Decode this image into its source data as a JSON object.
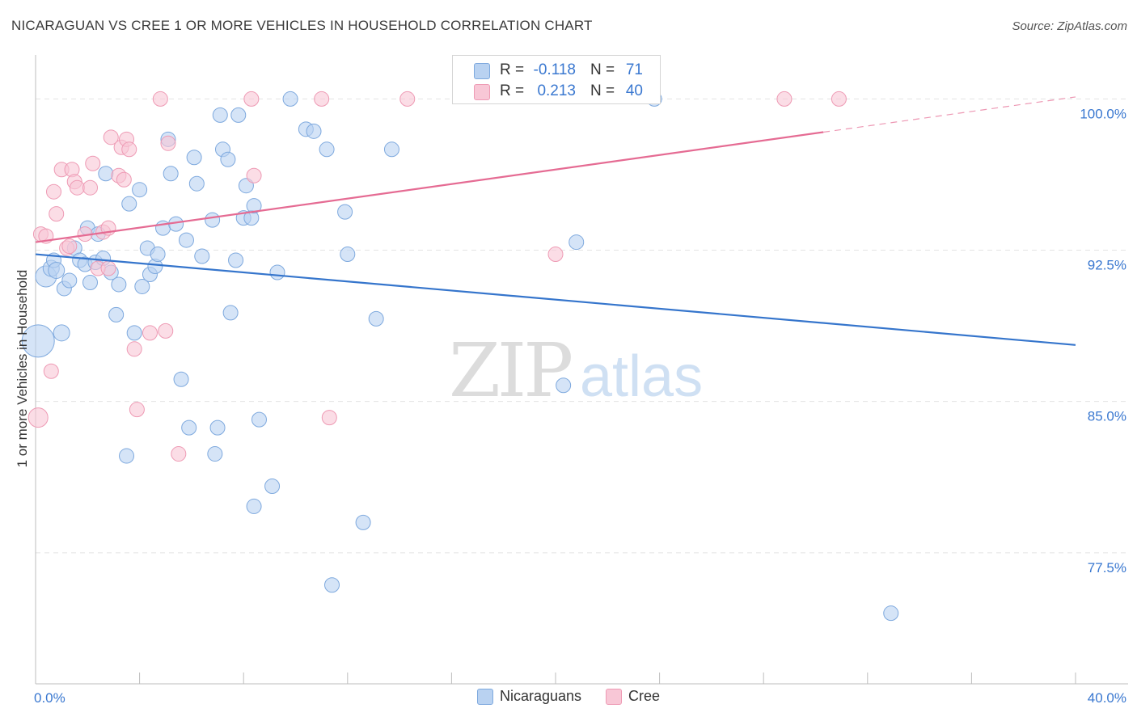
{
  "title": "NICARAGUAN VS CREE 1 OR MORE VEHICLES IN HOUSEHOLD CORRELATION CHART",
  "source": "Source: ZipAtlas.com",
  "watermark": {
    "zip": "ZIP",
    "atlas": "atlas"
  },
  "legend_stats": [
    {
      "series": "Nicaraguans",
      "r_label": "R =",
      "r_value": "-0.118",
      "n_label": "N =",
      "n_value": "71"
    },
    {
      "series": "Cree",
      "r_label": "R =",
      "r_value": "0.213",
      "n_label": "N =",
      "n_value": "40"
    }
  ],
  "legend_bottom": [
    {
      "label": "Nicaraguans"
    },
    {
      "label": "Cree"
    }
  ],
  "colors": {
    "blue_fill": "#b9d2f1",
    "blue_stroke": "#7ea9de",
    "blue_line": "#3575cc",
    "pink_fill": "#f8c7d6",
    "pink_stroke": "#ee9ab4",
    "pink_line": "#e56b93",
    "tick_text": "#3a78d0",
    "grid": "#e3e3e3"
  },
  "chart_data": {
    "type": "scatter",
    "title": "NICARAGUAN VS CREE 1 OR MORE VEHICLES IN HOUSEHOLD CORRELATION CHART",
    "xlabel": "",
    "ylabel": "1 or more Vehicles in Household",
    "xlim": [
      0,
      40
    ],
    "ylim": [
      71.0,
      101.7
    ],
    "x_tick_labels": [
      {
        "value": 0,
        "label": "0.0%"
      },
      {
        "value": 40,
        "label": "40.0%"
      }
    ],
    "y_tick_labels": [
      {
        "value": 100.0,
        "label": "100.0%"
      },
      {
        "value": 92.5,
        "label": "92.5%"
      },
      {
        "value": 85.0,
        "label": "85.0%"
      },
      {
        "value": 77.5,
        "label": "77.5%"
      }
    ],
    "x_minor_ticks": [
      4,
      8,
      12,
      16,
      20,
      24,
      28,
      32,
      36
    ],
    "series": [
      {
        "name": "Nicaraguans",
        "trend": {
          "x0": 0,
          "y0": 92.3,
          "x1": 40,
          "y1": 87.8,
          "dashed_from": null
        },
        "points": [
          [
            0.1,
            88.0,
            20
          ],
          [
            0.4,
            91.2,
            13
          ],
          [
            0.6,
            91.6,
            10
          ],
          [
            0.7,
            92.0,
            9
          ],
          [
            0.8,
            91.5,
            10
          ],
          [
            1.0,
            88.4,
            10
          ],
          [
            1.1,
            90.6,
            9
          ],
          [
            1.3,
            91.0,
            9
          ],
          [
            1.5,
            92.6,
            9
          ],
          [
            1.7,
            92.0,
            9
          ],
          [
            1.9,
            91.8,
            9
          ],
          [
            2.0,
            93.6,
            9
          ],
          [
            2.1,
            90.9,
            9
          ],
          [
            2.3,
            91.9,
            9
          ],
          [
            2.4,
            93.3,
            9
          ],
          [
            2.6,
            92.1,
            9
          ],
          [
            2.7,
            96.3,
            9
          ],
          [
            2.9,
            91.4,
            9
          ],
          [
            3.1,
            89.3,
            9
          ],
          [
            3.2,
            90.8,
            9
          ],
          [
            3.5,
            82.3,
            9
          ],
          [
            3.6,
            94.8,
            9
          ],
          [
            3.8,
            88.4,
            9
          ],
          [
            4.0,
            95.5,
            9
          ],
          [
            4.1,
            90.7,
            9
          ],
          [
            4.3,
            92.6,
            9
          ],
          [
            4.4,
            91.3,
            9
          ],
          [
            4.6,
            91.7,
            9
          ],
          [
            4.7,
            92.3,
            9
          ],
          [
            4.9,
            93.6,
            9
          ],
          [
            5.1,
            98.0,
            9
          ],
          [
            5.2,
            96.3,
            9
          ],
          [
            5.4,
            93.8,
            9
          ],
          [
            5.6,
            86.1,
            9
          ],
          [
            5.8,
            93.0,
            9
          ],
          [
            5.9,
            83.7,
            9
          ],
          [
            6.1,
            97.1,
            9
          ],
          [
            6.2,
            95.8,
            9
          ],
          [
            6.4,
            92.2,
            9
          ],
          [
            6.8,
            94.0,
            9
          ],
          [
            6.9,
            82.4,
            9
          ],
          [
            7.0,
            83.7,
            9
          ],
          [
            7.1,
            99.2,
            9
          ],
          [
            7.2,
            97.5,
            9
          ],
          [
            7.4,
            97.0,
            9
          ],
          [
            7.5,
            89.4,
            9
          ],
          [
            7.7,
            92.0,
            9
          ],
          [
            7.8,
            99.2,
            9
          ],
          [
            8.0,
            94.1,
            9
          ],
          [
            8.1,
            95.7,
            9
          ],
          [
            8.3,
            94.1,
            9
          ],
          [
            8.4,
            94.7,
            9
          ],
          [
            8.4,
            79.8,
            9
          ],
          [
            8.6,
            84.1,
            9
          ],
          [
            9.1,
            80.8,
            9
          ],
          [
            9.3,
            91.4,
            9
          ],
          [
            9.8,
            100.0,
            9
          ],
          [
            10.4,
            98.5,
            9
          ],
          [
            10.7,
            98.4,
            9
          ],
          [
            11.2,
            97.5,
            9
          ],
          [
            11.4,
            75.9,
            9
          ],
          [
            11.9,
            94.4,
            9
          ],
          [
            12.0,
            92.3,
            9
          ],
          [
            12.6,
            79.0,
            9
          ],
          [
            13.1,
            89.1,
            9
          ],
          [
            13.7,
            97.5,
            9
          ],
          [
            20.3,
            85.8,
            9
          ],
          [
            20.8,
            92.9,
            9
          ],
          [
            23.8,
            100.0,
            9
          ],
          [
            32.9,
            74.5,
            9
          ]
        ]
      },
      {
        "name": "Cree",
        "trend": {
          "x0": 0,
          "y0": 92.9,
          "x1": 40,
          "y1": 100.1,
          "dashed_from": 30.3
        },
        "points": [
          [
            0.1,
            84.2,
            12
          ],
          [
            0.2,
            93.3,
            9
          ],
          [
            0.4,
            93.2,
            9
          ],
          [
            0.6,
            86.5,
            9
          ],
          [
            0.7,
            95.4,
            9
          ],
          [
            0.8,
            94.3,
            9
          ],
          [
            1.0,
            96.5,
            9
          ],
          [
            1.2,
            92.6,
            9
          ],
          [
            1.3,
            92.7,
            9
          ],
          [
            1.4,
            96.5,
            9
          ],
          [
            1.5,
            95.9,
            9
          ],
          [
            1.6,
            95.6,
            9
          ],
          [
            1.9,
            93.3,
            9
          ],
          [
            2.1,
            95.6,
            9
          ],
          [
            2.2,
            96.8,
            9
          ],
          [
            2.4,
            91.6,
            9
          ],
          [
            2.6,
            93.4,
            9
          ],
          [
            2.8,
            93.6,
            9
          ],
          [
            2.8,
            91.6,
            9
          ],
          [
            2.9,
            98.1,
            9
          ],
          [
            3.2,
            96.2,
            9
          ],
          [
            3.3,
            97.6,
            9
          ],
          [
            3.4,
            96.0,
            9
          ],
          [
            3.5,
            98.0,
            9
          ],
          [
            3.6,
            97.5,
            9
          ],
          [
            3.8,
            87.6,
            9
          ],
          [
            3.9,
            84.6,
            9
          ],
          [
            4.4,
            88.4,
            9
          ],
          [
            4.8,
            100.0,
            9
          ],
          [
            5.0,
            88.5,
            9
          ],
          [
            5.1,
            97.8,
            9
          ],
          [
            5.5,
            82.4,
            9
          ],
          [
            8.3,
            100.0,
            9
          ],
          [
            8.4,
            96.2,
            9
          ],
          [
            11.0,
            100.0,
            9
          ],
          [
            11.3,
            84.2,
            9
          ],
          [
            14.3,
            100.0,
            9
          ],
          [
            20.0,
            92.3,
            9
          ],
          [
            28.8,
            100.0,
            9
          ],
          [
            30.9,
            100.0,
            9
          ]
        ]
      }
    ]
  }
}
